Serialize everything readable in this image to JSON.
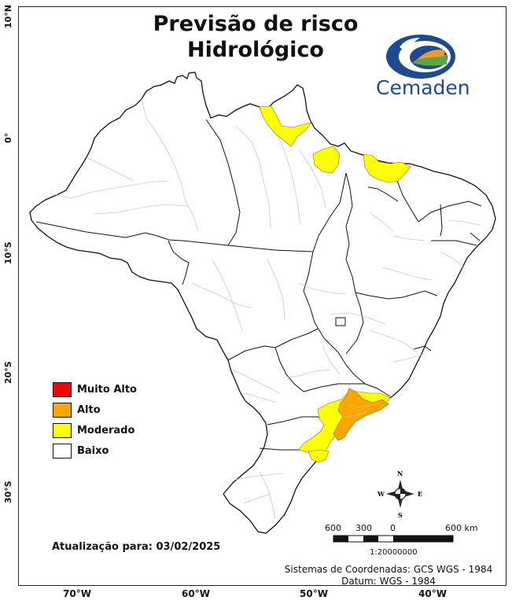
{
  "title": {
    "line1": "Previsão de risco",
    "line2": "Hidrológico"
  },
  "logo": {
    "text": "Cemaden",
    "colors": {
      "blue": "#1e4b8f",
      "green": "#5aa843",
      "orange": "#f29a2e"
    }
  },
  "legend": [
    {
      "label": "Muito Alto",
      "color": "#ff0000"
    },
    {
      "label": "Alto",
      "color": "#ffa500"
    },
    {
      "label": "Moderado",
      "color": "#ffff00"
    },
    {
      "label": "Baixo",
      "color": "#ffffff"
    }
  ],
  "axes": {
    "latitude": [
      "10°N",
      "0°",
      "10°S",
      "20°S",
      "30°S"
    ],
    "longitude": [
      "70°W",
      "60°W",
      "50°W",
      "40°W"
    ]
  },
  "update": "Atualização para: 03/02/2025",
  "scale": {
    "labels": [
      "600",
      "300",
      "0",
      "600 km"
    ],
    "ratio": "1:20000000"
  },
  "compass": {
    "n": "N",
    "s": "S",
    "e": "E",
    "w": "W"
  },
  "crs": {
    "line1": "Sistemas de Coordenadas: GCS WGS - 1984",
    "line2": "Datum: WGS - 1984"
  }
}
